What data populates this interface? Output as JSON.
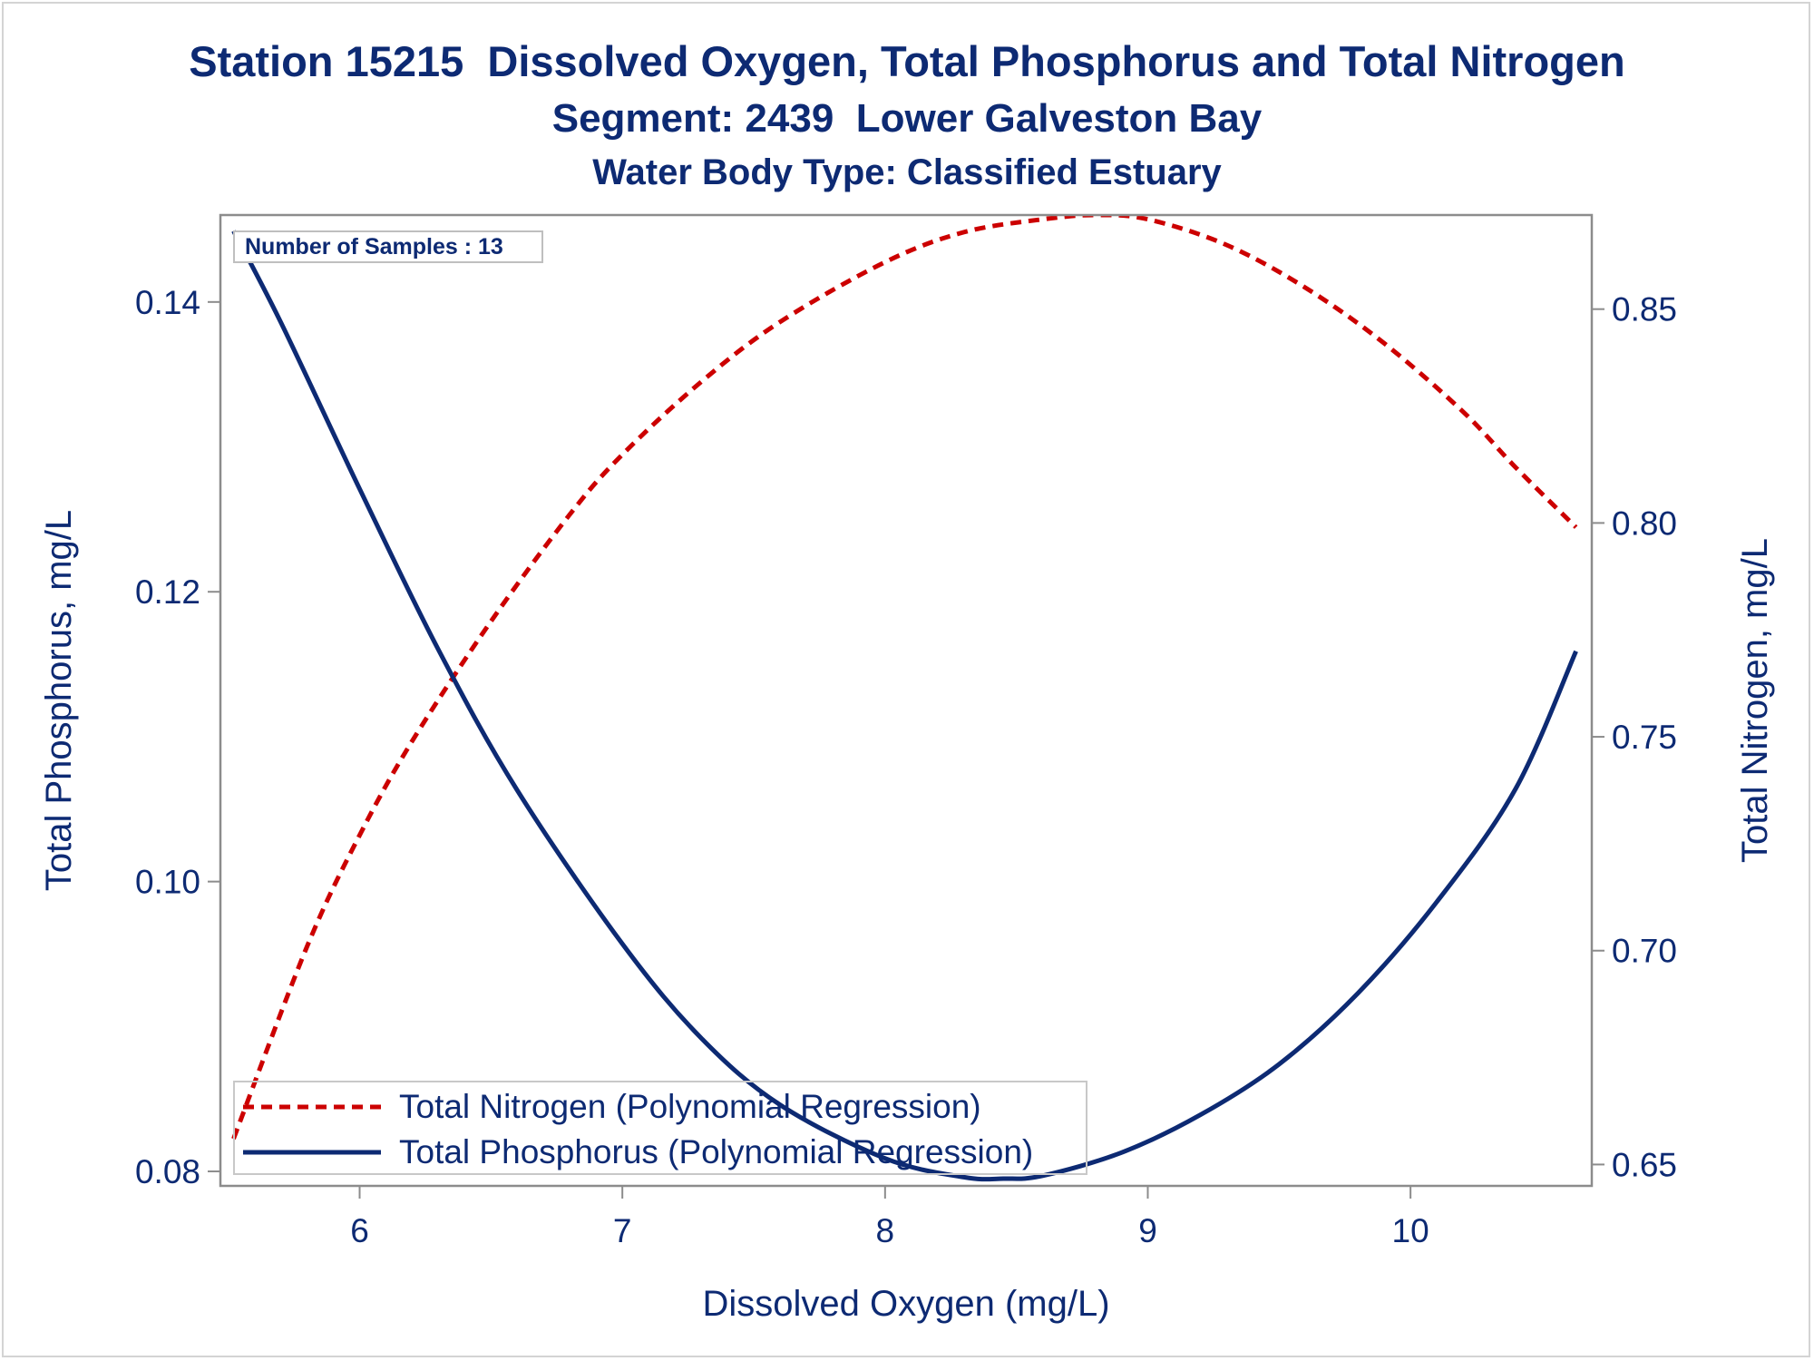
{
  "titles": {
    "line1": "Station 15215  Dissolved Oxygen, Total Phosphorus and Total Nitrogen",
    "line2": "Segment: 2439  Lower Galveston Bay",
    "line3": "Water Body Type: Classified Estuary"
  },
  "colors": {
    "text": "#0d2a73",
    "nitrogen": "#cc0000",
    "phosphorus": "#0d2a73",
    "axis": "#8c8c8c"
  },
  "chart_data": {
    "type": "line",
    "xlabel": "Dissolved Oxygen (mg/L)",
    "ylabel_left": "Total Phosphorus, mg/L",
    "ylabel_right": "Total Nitrogen, mg/L",
    "xlim": [
      5.47,
      10.69
    ],
    "ylim_left": [
      0.079,
      0.146
    ],
    "ylim_right": [
      0.645,
      0.872
    ],
    "x_ticks": [
      "6",
      "7",
      "8",
      "9",
      "10"
    ],
    "y_left_ticks": [
      "0.08",
      "0.10",
      "0.12",
      "0.14"
    ],
    "y_right_ticks": [
      "0.65",
      "0.70",
      "0.75",
      "0.80",
      "0.85"
    ],
    "grid": false,
    "inset_label": "Number of Samples : 13",
    "legend_position": "bottom-left",
    "series": [
      {
        "name": "Total Nitrogen (Polynomial Regression)",
        "axis": "right",
        "style": "dashed",
        "x": [
          5.52,
          5.8,
          6.0,
          6.2,
          6.5,
          6.8,
          7.0,
          7.3,
          7.6,
          8.0,
          8.3,
          8.6,
          8.8,
          9.0,
          9.3,
          9.6,
          9.9,
          10.2,
          10.4,
          10.63
        ],
        "y": [
          0.656,
          0.701,
          0.727,
          0.749,
          0.777,
          0.802,
          0.816,
          0.833,
          0.847,
          0.861,
          0.868,
          0.871,
          0.872,
          0.871,
          0.865,
          0.855,
          0.842,
          0.826,
          0.813,
          0.799
        ]
      },
      {
        "name": "Total Phosphorus (Polynomial Regression)",
        "axis": "left",
        "style": "solid",
        "x": [
          5.52,
          5.7,
          6.0,
          6.3,
          6.6,
          7.0,
          7.3,
          7.6,
          8.0,
          8.3,
          8.45,
          8.6,
          8.9,
          9.2,
          9.5,
          9.8,
          10.1,
          10.4,
          10.63
        ],
        "y": [
          0.1449,
          0.1386,
          0.1271,
          0.116,
          0.1063,
          0.0957,
          0.0892,
          0.0846,
          0.0809,
          0.0796,
          0.0795,
          0.0797,
          0.0813,
          0.0839,
          0.0874,
          0.0923,
          0.0986,
          0.1064,
          0.1159
        ]
      }
    ]
  }
}
